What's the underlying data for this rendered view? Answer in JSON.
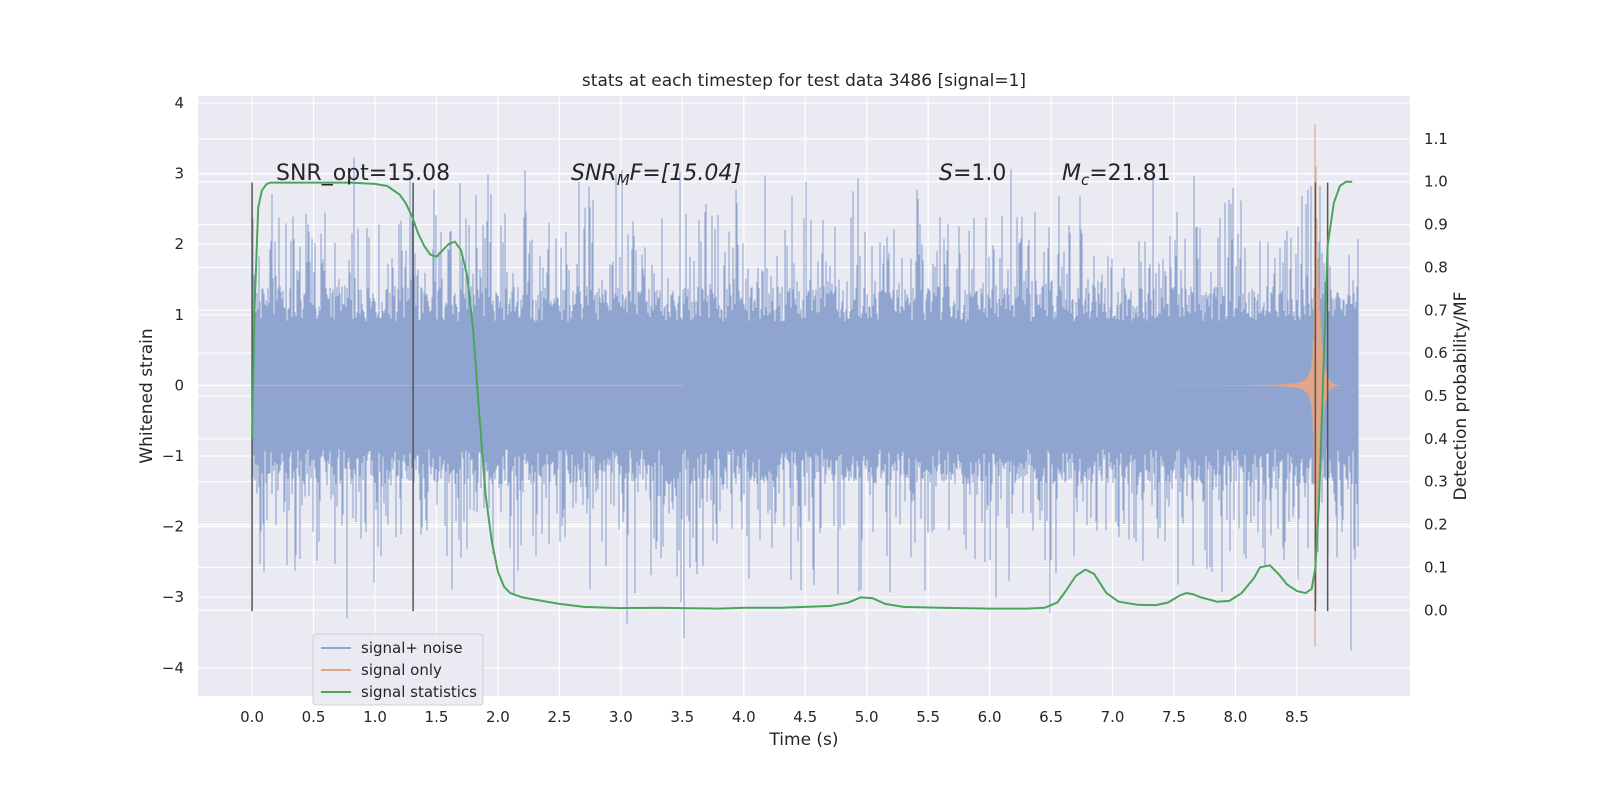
{
  "chart_data": {
    "type": "line",
    "title": "stats at each timestep for test data 3486 [signal=1]",
    "xlabel": "Time (s)",
    "ylabel_left": "Whitened strain",
    "ylabel_right": "Detection probability/MF",
    "xlim": [
      -0.44,
      9.42
    ],
    "ylim_left": [
      -4.4,
      4.1
    ],
    "ylim_right": [
      -0.2,
      1.2
    ],
    "x_ticks": [
      0.0,
      0.5,
      1.0,
      1.5,
      2.0,
      2.5,
      3.0,
      3.5,
      4.0,
      4.5,
      5.0,
      5.5,
      6.0,
      6.5,
      7.0,
      7.5,
      8.0,
      8.5
    ],
    "x_tick_labels": [
      "0.0",
      "0.5",
      "1.0",
      "1.5",
      "2.0",
      "2.5",
      "3.0",
      "3.5",
      "4.0",
      "4.5",
      "5.0",
      "5.5",
      "6.0",
      "6.5",
      "7.0",
      "7.5",
      "8.0",
      "8.5"
    ],
    "y_left_ticks": [
      -4,
      -3,
      -2,
      -1,
      0,
      1,
      2,
      3,
      4
    ],
    "y_left_tick_labels": [
      "−4",
      "−3",
      "−2",
      "−1",
      "0",
      "1",
      "2",
      "3",
      "4"
    ],
    "y_right_ticks": [
      0.0,
      0.1,
      0.2,
      0.3,
      0.4,
      0.5,
      0.6,
      0.7,
      0.8,
      0.9,
      1.0,
      1.1
    ],
    "y_right_tick_labels": [
      "0.0",
      "0.1",
      "0.2",
      "0.3",
      "0.4",
      "0.5",
      "0.6",
      "0.7",
      "0.8",
      "0.9",
      "1.0",
      "1.1"
    ],
    "grid": true,
    "legend_position": "bottom-left",
    "annotations": {
      "snr_opt": "SNR_opt=15.08",
      "snr_mf_base": "SNR",
      "snr_mf_sub": "M",
      "snr_mf_rest": "F=[15.04]",
      "s_italic": "S",
      "s_rest": "=1.0",
      "mc_base": "M",
      "mc_sub": "c",
      "mc_rest": "=21.81"
    },
    "vertical_markers": [
      0.0,
      1.31,
      8.65,
      8.75
    ],
    "series": [
      {
        "name": "signal+ noise",
        "color": "#8fa5cf",
        "axis": "left",
        "x_range": [
          0.0,
          9.0
        ],
        "amplitude_core": 1.0,
        "min": -4.0,
        "max": 3.72
      },
      {
        "name": "signal only",
        "color": "#e1a58a",
        "axis": "left",
        "x_range": [
          0.0,
          9.0
        ],
        "peak_time": 8.65,
        "peak_amplitude": 3.7
      },
      {
        "name": "signal statistics",
        "color": "#4aa55c",
        "axis": "right",
        "x": [
          0.0,
          0.02,
          0.05,
          0.08,
          0.12,
          0.15,
          0.2,
          0.3,
          0.5,
          0.8,
          1.0,
          1.1,
          1.2,
          1.25,
          1.3,
          1.35,
          1.4,
          1.45,
          1.5,
          1.55,
          1.6,
          1.65,
          1.7,
          1.75,
          1.8,
          1.85,
          1.9,
          1.95,
          2.0,
          2.05,
          2.1,
          2.15,
          2.2,
          2.3,
          2.5,
          2.7,
          3.0,
          3.3,
          3.5,
          3.8,
          4.0,
          4.3,
          4.5,
          4.7,
          4.85,
          4.95,
          5.05,
          5.15,
          5.3,
          5.6,
          6.0,
          6.3,
          6.45,
          6.55,
          6.62,
          6.7,
          6.78,
          6.85,
          6.95,
          7.05,
          7.2,
          7.35,
          7.45,
          7.55,
          7.6,
          7.65,
          7.72,
          7.85,
          7.95,
          8.05,
          8.15,
          8.2,
          8.28,
          8.35,
          8.42,
          8.5,
          8.57,
          8.62,
          8.65,
          8.68,
          8.72,
          8.75,
          8.8,
          8.85,
          8.9,
          8.95
        ],
        "values": [
          0.4,
          0.7,
          0.94,
          0.98,
          0.995,
          0.998,
          0.998,
          0.998,
          0.998,
          0.998,
          0.995,
          0.99,
          0.97,
          0.95,
          0.92,
          0.88,
          0.85,
          0.83,
          0.825,
          0.84,
          0.855,
          0.86,
          0.84,
          0.78,
          0.65,
          0.45,
          0.27,
          0.16,
          0.09,
          0.055,
          0.04,
          0.035,
          0.03,
          0.025,
          0.015,
          0.008,
          0.005,
          0.006,
          0.005,
          0.004,
          0.006,
          0.006,
          0.008,
          0.01,
          0.018,
          0.03,
          0.028,
          0.015,
          0.008,
          0.006,
          0.004,
          0.004,
          0.006,
          0.018,
          0.045,
          0.08,
          0.095,
          0.085,
          0.04,
          0.02,
          0.013,
          0.012,
          0.018,
          0.035,
          0.04,
          0.038,
          0.03,
          0.02,
          0.022,
          0.04,
          0.075,
          0.1,
          0.105,
          0.085,
          0.06,
          0.045,
          0.04,
          0.05,
          0.1,
          0.25,
          0.6,
          0.85,
          0.95,
          0.99,
          1.0,
          1.0
        ]
      }
    ]
  }
}
